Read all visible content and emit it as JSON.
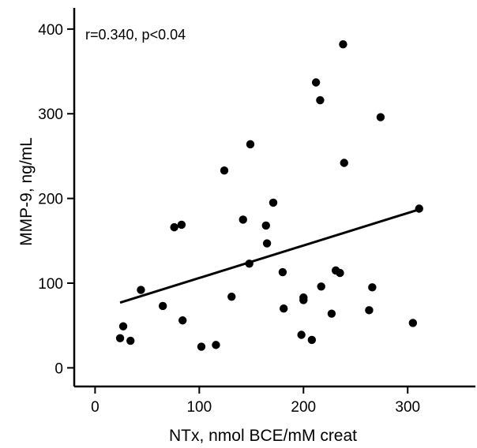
{
  "chart_data": {
    "type": "scatter",
    "title": "",
    "annotation": "r=0.340, p<0.04",
    "xlabel": "NTx, nmol BCE/mM creat",
    "ylabel": "MMP-9, ng/mL",
    "xlim": [
      -20,
      365
    ],
    "ylim": [
      -22,
      425
    ],
    "x_ticks": [
      0,
      100,
      200,
      300
    ],
    "y_ticks": [
      0,
      100,
      200,
      300,
      400
    ],
    "grid": false,
    "legend": "none",
    "colors": {
      "points": "#000000",
      "fit_line": "#000000",
      "axes": "#000000"
    },
    "series": [
      {
        "points": [
          {
            "x": 24,
            "y": 35
          },
          {
            "x": 27,
            "y": 49
          },
          {
            "x": 34,
            "y": 32
          },
          {
            "x": 44,
            "y": 92
          },
          {
            "x": 65,
            "y": 73
          },
          {
            "x": 76,
            "y": 166
          },
          {
            "x": 83,
            "y": 169
          },
          {
            "x": 84,
            "y": 56
          },
          {
            "x": 102,
            "y": 25
          },
          {
            "x": 116,
            "y": 27
          },
          {
            "x": 124,
            "y": 233
          },
          {
            "x": 131,
            "y": 84
          },
          {
            "x": 142,
            "y": 175
          },
          {
            "x": 148,
            "y": 123
          },
          {
            "x": 149,
            "y": 264
          },
          {
            "x": 164,
            "y": 168
          },
          {
            "x": 165,
            "y": 147
          },
          {
            "x": 171,
            "y": 195
          },
          {
            "x": 180,
            "y": 113
          },
          {
            "x": 181,
            "y": 70
          },
          {
            "x": 198,
            "y": 39
          },
          {
            "x": 200,
            "y": 80
          },
          {
            "x": 200,
            "y": 83
          },
          {
            "x": 208,
            "y": 33
          },
          {
            "x": 212,
            "y": 337
          },
          {
            "x": 216,
            "y": 316
          },
          {
            "x": 217,
            "y": 96
          },
          {
            "x": 227,
            "y": 64
          },
          {
            "x": 231,
            "y": 115
          },
          {
            "x": 235,
            "y": 112
          },
          {
            "x": 238,
            "y": 382
          },
          {
            "x": 239,
            "y": 242
          },
          {
            "x": 263,
            "y": 68
          },
          {
            "x": 266,
            "y": 95
          },
          {
            "x": 274,
            "y": 296
          },
          {
            "x": 305,
            "y": 53
          },
          {
            "x": 311,
            "y": 188
          }
        ]
      }
    ],
    "fit_line": {
      "x": [
        24,
        311
      ],
      "y": [
        77,
        187
      ]
    }
  }
}
